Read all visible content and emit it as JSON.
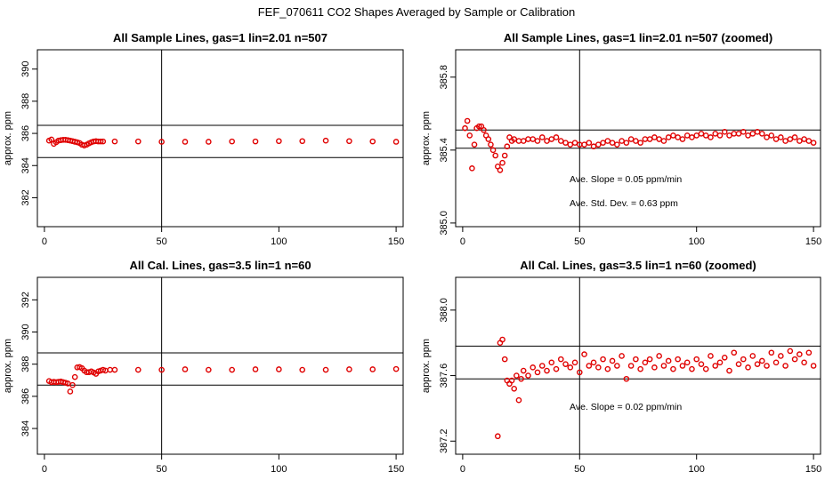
{
  "title": "FEF_070611  CO2 Shapes Averaged by Sample or Calibration",
  "colors": {
    "points": "#e00000",
    "lines": "#000000"
  },
  "chart_data": [
    {
      "type": "scatter",
      "title": "All Sample Lines, gas=1 lin=2.01 n=507",
      "ylabel": "approx. ppm",
      "xlim": [
        -3,
        153
      ],
      "ylim": [
        380.2,
        391.2
      ],
      "xticks": [
        0,
        50,
        100,
        150
      ],
      "xtick_labels": [
        "0",
        "50",
        "100",
        "150"
      ],
      "yticks": [
        382,
        384,
        386,
        388,
        390
      ],
      "ytick_labels": [
        "382",
        "384",
        "386",
        "388",
        "390"
      ],
      "hlines": [
        386.5,
        384.5
      ],
      "vline": 50,
      "x": [
        2,
        3,
        4,
        5,
        6,
        7,
        8,
        9,
        10,
        11,
        12,
        13,
        14,
        15,
        16,
        17,
        18,
        19,
        20,
        21,
        22,
        23,
        24,
        25,
        30,
        40,
        50,
        60,
        70,
        80,
        90,
        100,
        110,
        120,
        130,
        140,
        150
      ],
      "y": [
        385.55,
        385.62,
        385.35,
        385.45,
        385.55,
        385.58,
        385.6,
        385.6,
        385.58,
        385.55,
        385.52,
        385.48,
        385.45,
        385.4,
        385.3,
        385.25,
        385.3,
        385.38,
        385.45,
        385.5,
        385.52,
        385.5,
        385.5,
        385.5,
        385.5,
        385.5,
        385.48,
        385.48,
        385.48,
        385.5,
        385.5,
        385.52,
        385.52,
        385.55,
        385.52,
        385.5,
        385.48
      ],
      "annotations": []
    },
    {
      "type": "scatter",
      "title": "All Sample Lines, gas=1 lin=2.01 n=507 (zoomed)",
      "ylabel": "approx. ppm",
      "xlim": [
        -3,
        153
      ],
      "ylim": [
        384.98,
        385.95
      ],
      "xticks": [
        0,
        50,
        100,
        150
      ],
      "xtick_labels": [
        "0",
        "50",
        "100",
        "150"
      ],
      "yticks": [
        385.0,
        385.4,
        385.8
      ],
      "ytick_labels": [
        "385.0",
        "385.4",
        "385.8"
      ],
      "hlines": [
        385.51,
        385.41
      ],
      "vline": 50,
      "x": [
        1,
        2,
        3,
        4,
        5,
        6,
        7,
        8,
        9,
        10,
        11,
        12,
        13,
        14,
        15,
        16,
        17,
        18,
        19,
        20,
        21,
        22,
        24,
        26,
        28,
        30,
        32,
        34,
        36,
        38,
        40,
        42,
        44,
        46,
        48,
        50,
        52,
        54,
        56,
        58,
        60,
        62,
        64,
        66,
        68,
        70,
        72,
        74,
        76,
        78,
        80,
        82,
        84,
        86,
        88,
        90,
        92,
        94,
        96,
        98,
        100,
        102,
        104,
        106,
        108,
        110,
        112,
        114,
        116,
        118,
        120,
        122,
        124,
        126,
        128,
        130,
        132,
        134,
        136,
        138,
        140,
        142,
        144,
        146,
        148,
        150
      ],
      "y": [
        385.52,
        385.56,
        385.48,
        385.3,
        385.43,
        385.52,
        385.53,
        385.53,
        385.51,
        385.48,
        385.46,
        385.43,
        385.4,
        385.37,
        385.31,
        385.29,
        385.33,
        385.37,
        385.42,
        385.47,
        385.45,
        385.46,
        385.45,
        385.45,
        385.46,
        385.46,
        385.45,
        385.47,
        385.45,
        385.46,
        385.47,
        385.45,
        385.44,
        385.43,
        385.44,
        385.43,
        385.43,
        385.44,
        385.42,
        385.43,
        385.44,
        385.45,
        385.44,
        385.43,
        385.45,
        385.44,
        385.46,
        385.45,
        385.44,
        385.46,
        385.46,
        385.47,
        385.46,
        385.45,
        385.47,
        385.48,
        385.47,
        385.46,
        385.48,
        385.47,
        385.48,
        385.49,
        385.48,
        385.47,
        385.49,
        385.48,
        385.5,
        385.48,
        385.49,
        385.49,
        385.5,
        385.48,
        385.49,
        385.5,
        385.49,
        385.47,
        385.48,
        385.46,
        385.47,
        385.45,
        385.46,
        385.47,
        385.45,
        385.46,
        385.45,
        385.44
      ],
      "annotations": [
        "Ave. Slope =  0.05  ppm/min",
        "Ave. Std. Dev. =  0.63  ppm"
      ]
    },
    {
      "type": "scatter",
      "title": "All Cal. Lines, gas=3.5 lin=1 n=60",
      "ylabel": "approx. ppm",
      "xlim": [
        -3,
        153
      ],
      "ylim": [
        382.4,
        393.4
      ],
      "xticks": [
        0,
        50,
        100,
        150
      ],
      "xtick_labels": [
        "0",
        "50",
        "100",
        "150"
      ],
      "yticks": [
        384,
        386,
        388,
        390,
        392
      ],
      "ytick_labels": [
        "384",
        "386",
        "388",
        "390",
        "392"
      ],
      "hlines": [
        388.7,
        386.7
      ],
      "vline": 50,
      "x": [
        2,
        3,
        4,
        5,
        6,
        7,
        8,
        9,
        10,
        11,
        12,
        13,
        14,
        15,
        16,
        17,
        18,
        19,
        20,
        21,
        22,
        23,
        24,
        25,
        26,
        28,
        30,
        40,
        50,
        60,
        70,
        80,
        90,
        100,
        110,
        120,
        130,
        140,
        150
      ],
      "y": [
        386.95,
        386.88,
        386.9,
        386.88,
        386.9,
        386.92,
        386.88,
        386.85,
        386.8,
        386.3,
        386.7,
        387.2,
        387.8,
        387.82,
        387.75,
        387.6,
        387.5,
        387.5,
        387.55,
        387.48,
        387.4,
        387.55,
        387.6,
        387.65,
        387.6,
        387.65,
        387.65,
        387.65,
        387.65,
        387.68,
        387.65,
        387.65,
        387.68,
        387.68,
        387.65,
        387.65,
        387.68,
        387.68,
        387.7
      ],
      "annotations": []
    },
    {
      "type": "scatter",
      "title": "All Cal. Lines, gas=3.5 lin=1 n=60 (zoomed)",
      "ylabel": "approx. ppm",
      "xlim": [
        -3,
        153
      ],
      "ylim": [
        387.12,
        388.2
      ],
      "xticks": [
        0,
        50,
        100,
        150
      ],
      "xtick_labels": [
        "0",
        "50",
        "100",
        "150"
      ],
      "yticks": [
        387.2,
        387.6,
        388.0
      ],
      "ytick_labels": [
        "387.2",
        "387.6",
        "388.0"
      ],
      "hlines": [
        387.78,
        387.58
      ],
      "vline": 50,
      "x": [
        15,
        16,
        17,
        18,
        19,
        20,
        21,
        22,
        23,
        24,
        25,
        26,
        28,
        30,
        32,
        34,
        36,
        38,
        40,
        42,
        44,
        46,
        48,
        50,
        52,
        54,
        56,
        58,
        60,
        62,
        64,
        66,
        68,
        70,
        72,
        74,
        76,
        78,
        80,
        82,
        84,
        86,
        88,
        90,
        92,
        94,
        96,
        98,
        100,
        102,
        104,
        106,
        108,
        110,
        112,
        114,
        116,
        118,
        120,
        122,
        124,
        126,
        128,
        130,
        132,
        134,
        136,
        138,
        140,
        142,
        144,
        146,
        148,
        150
      ],
      "y": [
        387.23,
        387.8,
        387.82,
        387.7,
        387.57,
        387.55,
        387.57,
        387.52,
        387.6,
        387.45,
        387.58,
        387.63,
        387.6,
        387.65,
        387.62,
        387.66,
        387.63,
        387.68,
        387.64,
        387.7,
        387.67,
        387.65,
        387.68,
        387.62,
        387.73,
        387.66,
        387.68,
        387.65,
        387.7,
        387.64,
        387.69,
        387.66,
        387.72,
        387.58,
        387.66,
        387.7,
        387.64,
        387.68,
        387.7,
        387.65,
        387.72,
        387.66,
        387.69,
        387.64,
        387.7,
        387.66,
        387.68,
        387.64,
        387.7,
        387.67,
        387.64,
        387.72,
        387.66,
        387.68,
        387.71,
        387.63,
        387.74,
        387.67,
        387.7,
        387.65,
        387.72,
        387.67,
        387.69,
        387.66,
        387.74,
        387.68,
        387.72,
        387.66,
        387.75,
        387.7,
        387.73,
        387.68,
        387.74,
        387.66
      ],
      "annotations": [
        "Ave. Slope =  0.02  ppm/min"
      ]
    }
  ]
}
